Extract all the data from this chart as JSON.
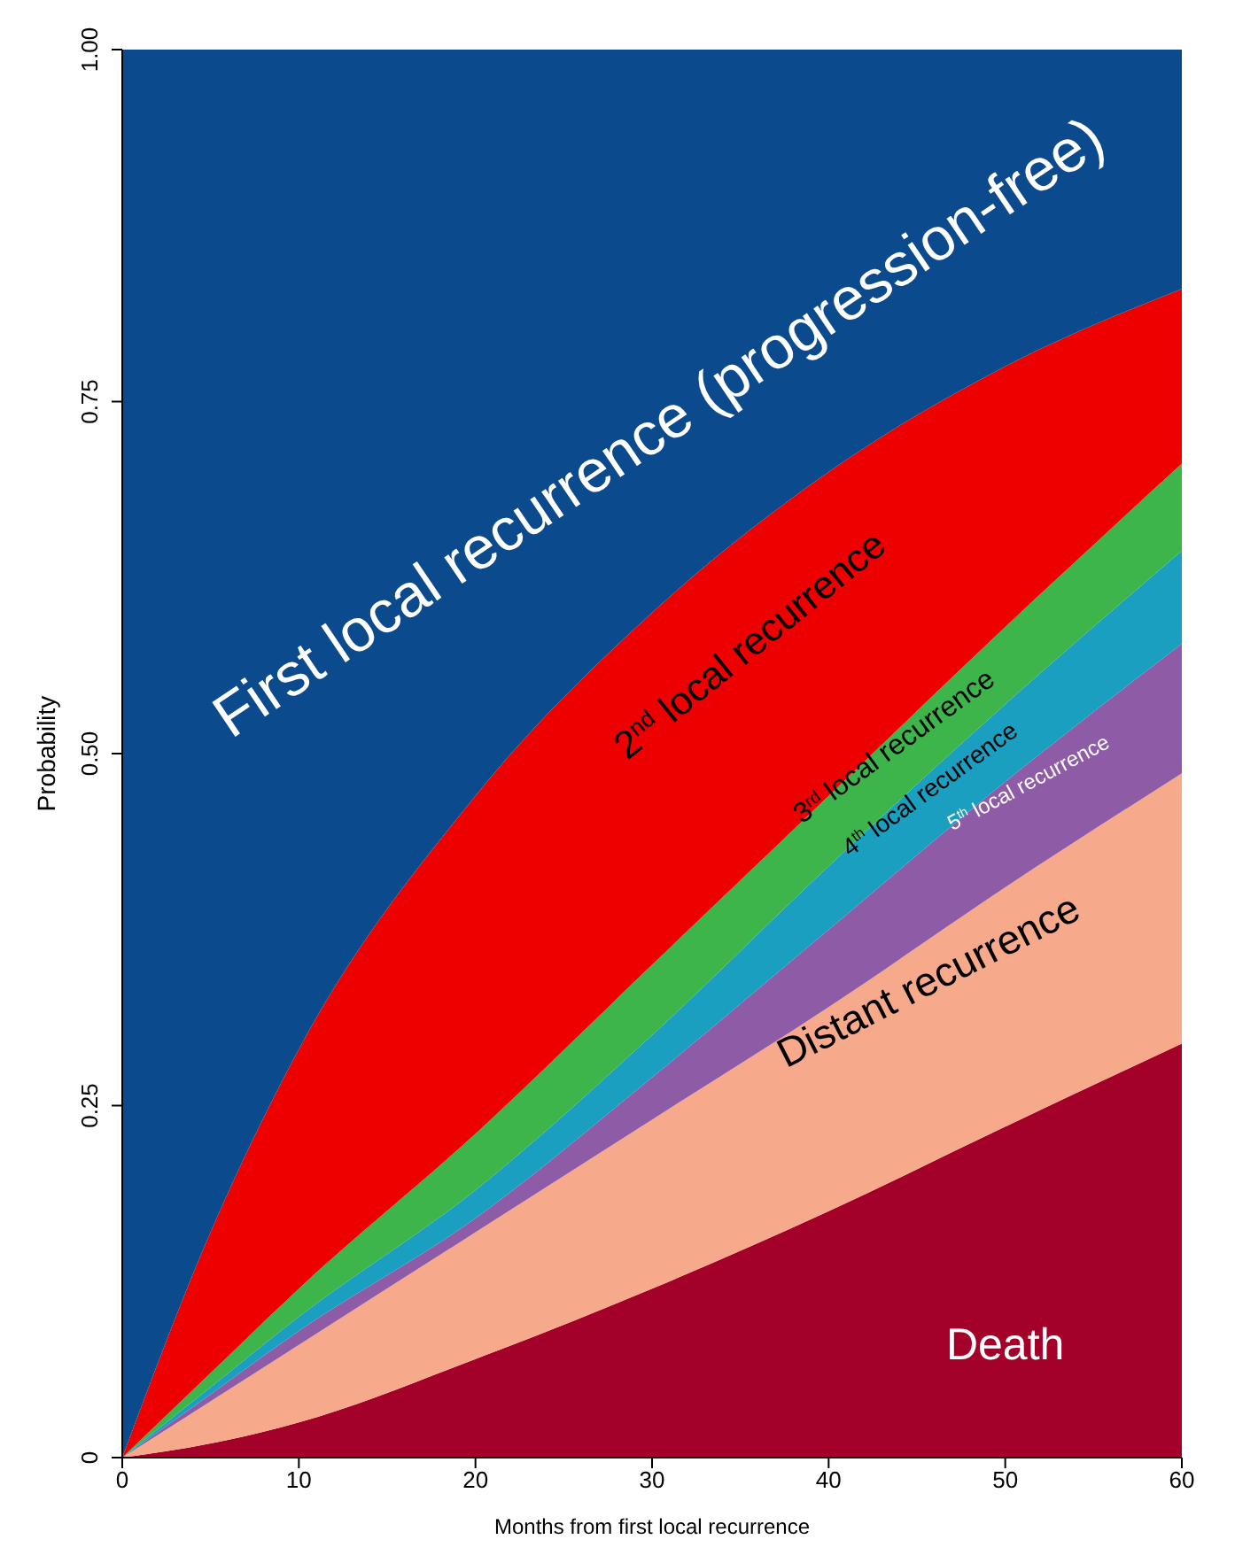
{
  "chart_data": {
    "type": "area",
    "stacked": true,
    "legend": false,
    "grid": false,
    "xlabel": "Months from first local recurrence",
    "ylabel": "Probability",
    "x": [
      0,
      5,
      10,
      20,
      30,
      40,
      50,
      60
    ],
    "xlim": [
      0,
      60
    ],
    "xticks": [
      0,
      10,
      20,
      30,
      40,
      50,
      60
    ],
    "ylim": [
      0,
      1
    ],
    "yticks": [
      0,
      0.25,
      {
        "value": 0.5,
        "label": "0.50"
      },
      0.75,
      {
        "value": 1,
        "label": "1.00"
      }
    ],
    "series": [
      {
        "name": "Death",
        "color": "#a3002a",
        "values": [
          0,
          0.01,
          0.025,
          0.07,
          0.12,
          0.175,
          0.235,
          0.294
        ]
      },
      {
        "name": "Distant recurrence",
        "color": "#f7a98b",
        "values": [
          0,
          0.03,
          0.055,
          0.09,
          0.12,
          0.145,
          0.17,
          0.192
        ]
      },
      {
        "name": "5$^{th}$ local recurrence",
        "color": "#8e5ba6",
        "values": [
          0,
          0.005,
          0.01,
          0.01,
          0.03,
          0.055,
          0.075,
          0.092
        ]
      },
      {
        "name": "4$^{th}$ local recurrence",
        "color": "#1a9fc0",
        "values": [
          0,
          0.005,
          0.01,
          0.02,
          0.03,
          0.045,
          0.055,
          0.066
        ]
      },
      {
        "name": "3$^{rd}$ local recurrence",
        "color": "#3db54a",
        "values": [
          0,
          0.01,
          0.02,
          0.04,
          0.05,
          0.05,
          0.055,
          0.062
        ]
      },
      {
        "name": "2$^{nd}$ local recurrence",
        "color": "#ee0000",
        "values": [
          0,
          0.1,
          0.17,
          0.24,
          0.25,
          0.23,
          0.185,
          0.124
        ]
      },
      {
        "name": "First local recurrence (progression-free)",
        "color": "#0b4a8c",
        "values": [
          1,
          0.84,
          0.71,
          0.53,
          0.4,
          0.3,
          0.225,
          0.17
        ]
      }
    ]
  }
}
